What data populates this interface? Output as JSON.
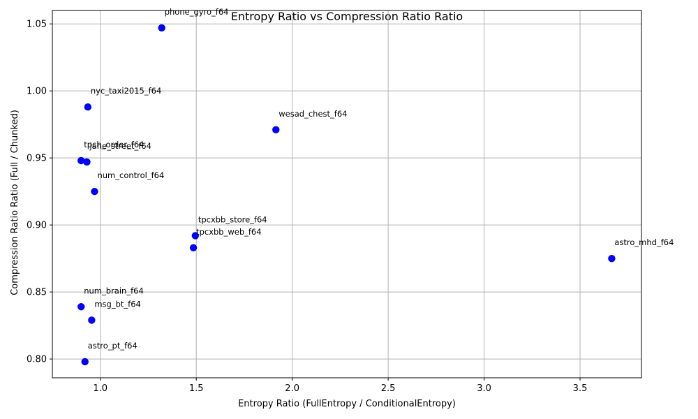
{
  "chart_data": {
    "type": "scatter",
    "title": "Entropy Ratio vs Compression Ratio Ratio",
    "xlabel": "Entropy Ratio (FullEntropy / ConditionalEntropy)",
    "ylabel": "Compression Ratio Ratio (Full / Chunked)",
    "xlim": [
      0.75,
      3.82
    ],
    "ylim": [
      0.786,
      1.06
    ],
    "xticks": [
      1.0,
      1.5,
      2.0,
      2.5,
      3.0,
      3.5
    ],
    "xtick_labels": [
      "1.0",
      "1.5",
      "2.0",
      "2.5",
      "3.0",
      "3.5"
    ],
    "yticks": [
      0.8,
      0.85,
      0.9,
      0.95,
      1.0,
      1.05
    ],
    "ytick_labels": [
      "0.80",
      "0.85",
      "0.90",
      "0.95",
      "1.00",
      "1.05"
    ],
    "grid": true,
    "marker_color": "#0000ff",
    "points": [
      {
        "label": "phone_gyro_f64",
        "x": 1.32,
        "y": 1.047
      },
      {
        "label": "nyc_taxi2015_f64",
        "x": 0.935,
        "y": 0.988
      },
      {
        "label": "wesad_chest_f64",
        "x": 1.915,
        "y": 0.971
      },
      {
        "label": "tpch_order_f64",
        "x": 0.9,
        "y": 0.948
      },
      {
        "label": "jane_street_f64",
        "x": 0.93,
        "y": 0.947
      },
      {
        "label": "num_control_f64",
        "x": 0.97,
        "y": 0.925
      },
      {
        "label": "tpcxbb_store_f64",
        "x": 1.495,
        "y": 0.892
      },
      {
        "label": "tpcxbb_web_f64",
        "x": 1.485,
        "y": 0.883
      },
      {
        "label": "astro_mhd_f64",
        "x": 3.665,
        "y": 0.875
      },
      {
        "label": "num_brain_f64",
        "x": 0.9,
        "y": 0.839
      },
      {
        "label": "msg_bt_f64",
        "x": 0.955,
        "y": 0.829
      },
      {
        "label": "astro_pt_f64",
        "x": 0.92,
        "y": 0.798
      }
    ]
  }
}
